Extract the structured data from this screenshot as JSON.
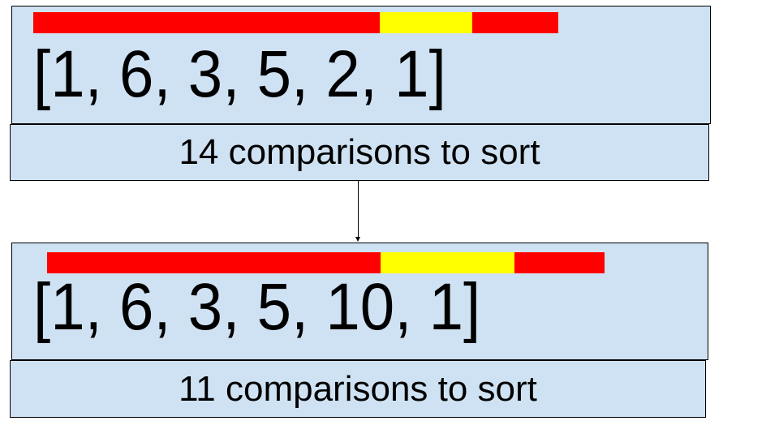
{
  "colors": {
    "panel_fill": "#cfe2f3",
    "bar_red": "#ff0000",
    "bar_yellow": "#ffff00",
    "border": "#000000"
  },
  "top": {
    "array_text": "[1, 6, 3, 5, 2, 1]",
    "caption": "14 comparisons to sort",
    "bar_segments": [
      "red",
      "yellow",
      "red"
    ]
  },
  "bottom": {
    "array_text": "[1, 6, 3, 5, 10, 1]",
    "caption": "11 comparisons to sort",
    "bar_segments": [
      "red",
      "yellow",
      "red"
    ]
  }
}
